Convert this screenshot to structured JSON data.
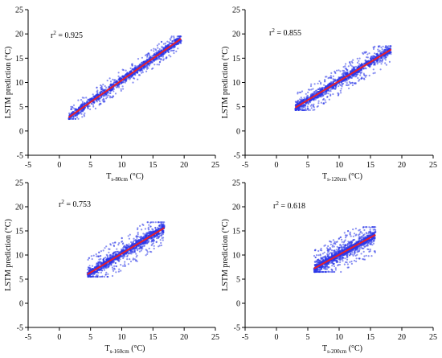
{
  "chart_data": [
    {
      "type": "scatter",
      "ylabel": "LSTM prediction  (°C)",
      "xlabel_main": "T",
      "xlabel_sub": "s-80cm",
      "xlabel_unit": " (°C)",
      "r2_base": "r",
      "r2_sup": "2",
      "r2_value": " = 0.925",
      "xlim": [
        -5,
        25
      ],
      "ylim": [
        -5,
        25
      ],
      "xticks": [
        "-5",
        "0",
        "5",
        "10",
        "15",
        "20",
        "25"
      ],
      "yticks": [
        "-5",
        "0",
        "5",
        "10",
        "15",
        "20",
        "25"
      ],
      "scatter_color": "#2a36e8",
      "fit_color": "#e8202a",
      "fit_line": [
        [
          1.5,
          2.8
        ],
        [
          19.5,
          19.0
        ]
      ],
      "point_range": {
        "x": [
          1.5,
          19.5
        ],
        "y": [
          2.5,
          19.5
        ]
      }
    },
    {
      "type": "scatter",
      "ylabel": "LSTM prediction  (°C)",
      "xlabel_main": "T",
      "xlabel_sub": "s-120cm",
      "xlabel_unit": " (°C)",
      "r2_base": "r",
      "r2_sup": "2",
      "r2_value": " = 0.855",
      "xlim": [
        -5,
        25
      ],
      "ylim": [
        -5,
        25
      ],
      "xticks": [
        "-5",
        "0",
        "5",
        "10",
        "15",
        "20",
        "25"
      ],
      "yticks": [
        "-5",
        "0",
        "5",
        "10",
        "15",
        "20",
        "25"
      ],
      "scatter_color": "#2a36e8",
      "fit_color": "#e8202a",
      "fit_line": [
        [
          3.0,
          4.8
        ],
        [
          18.3,
          16.8
        ]
      ],
      "point_range": {
        "x": [
          3.0,
          18.3
        ],
        "y": [
          4.3,
          17.5
        ]
      }
    },
    {
      "type": "scatter",
      "ylabel": "LSTM prediction  (°C)",
      "xlabel_main": "T",
      "xlabel_sub": "s-160cm",
      "xlabel_unit": " (°C)",
      "r2_base": "r",
      "r2_sup": "2",
      "r2_value": " = 0.753",
      "xlim": [
        -5,
        25
      ],
      "ylim": [
        -5,
        25
      ],
      "xticks": [
        "-5",
        "0",
        "5",
        "10",
        "15",
        "20",
        "25"
      ],
      "yticks": [
        "-5",
        "0",
        "5",
        "10",
        "15",
        "20",
        "25"
      ],
      "scatter_color": "#2a36e8",
      "fit_color": "#e8202a",
      "fit_line": [
        [
          4.5,
          6.0
        ],
        [
          16.8,
          15.6
        ]
      ],
      "point_range": {
        "x": [
          4.5,
          16.8
        ],
        "y": [
          5.5,
          16.8
        ]
      }
    },
    {
      "type": "scatter",
      "ylabel": "LSTM prediction  (°C)",
      "xlabel_main": "T",
      "xlabel_sub": "s-200cm",
      "xlabel_unit": " (°C)",
      "r2_base": "r",
      "r2_sup": "2",
      "r2_value": " = 0.618",
      "xlim": [
        -5,
        25
      ],
      "ylim": [
        -5,
        25
      ],
      "xticks": [
        "-5",
        "0",
        "5",
        "10",
        "15",
        "20",
        "25"
      ],
      "yticks": [
        "-5",
        "0",
        "5",
        "10",
        "15",
        "20",
        "25"
      ],
      "scatter_color": "#2a36e8",
      "fit_color": "#e8202a",
      "fit_line": [
        [
          6.0,
          7.2
        ],
        [
          15.8,
          14.2
        ]
      ],
      "point_range": {
        "x": [
          6.0,
          15.8
        ],
        "y": [
          6.5,
          15.8
        ]
      }
    }
  ]
}
